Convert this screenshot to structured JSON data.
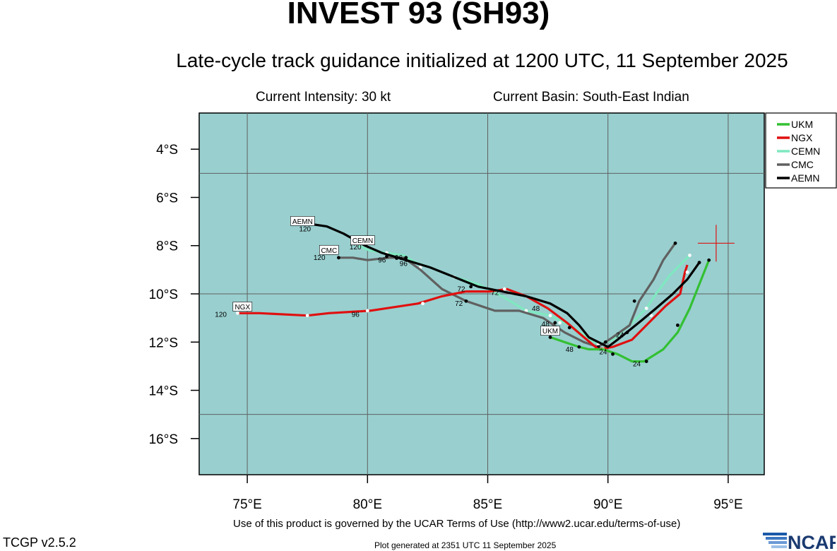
{
  "header": {
    "title": "INVEST 93 (SH93)",
    "subtitle": "Late-cycle track guidance initialized at 1200 UTC, 11 September 2025",
    "current_intensity": "Current Intensity: 30 kt",
    "current_basin": "Current Basin: South-East Indian"
  },
  "footer": {
    "terms": "Use of this product is governed by the UCAR Terms of Use (http://www2.ucar.edu/terms-of-use)",
    "version": "TCGP v2.5.2",
    "generated": "Plot generated at 2351 UTC   11 September 2025",
    "logo_text": "NCAR"
  },
  "colors": {
    "ocean": "#99CFCF",
    "UKM": "#33C033",
    "NGX": "#E01010",
    "CEMN": "#7FE8C0",
    "CMC": "#606060",
    "AEMN": "#000000",
    "current_position": "#E01010"
  },
  "map": {
    "lon_range": [
      73,
      96.5
    ],
    "lat_range": [
      -17.5,
      -2.5
    ],
    "x_ticks": [
      "75°E",
      "80°E",
      "85°E",
      "90°E",
      "95°E"
    ],
    "x_tick_values": [
      75,
      80,
      85,
      90,
      95
    ],
    "y_ticks": [
      "4°S",
      "6°S",
      "8°S",
      "10°S",
      "12°S",
      "14°S",
      "16°S"
    ],
    "y_tick_values": [
      -4,
      -6,
      -8,
      -10,
      -12,
      -14,
      -16
    ],
    "current_position": [
      94.5,
      -7.9
    ]
  },
  "legend": [
    "UKM",
    "NGX",
    "CEMN",
    "CMC",
    "AEMN"
  ],
  "tracks": [
    {
      "name": "CEMN",
      "points": [
        [
          93.4,
          -8.4
        ],
        [
          92.6,
          -9.2
        ],
        [
          92.0,
          -10.0
        ],
        [
          91.6,
          -10.6
        ],
        [
          91.0,
          -11.2
        ],
        [
          90.2,
          -11.9
        ],
        [
          89.6,
          -12.1
        ],
        [
          89.0,
          -11.7
        ],
        [
          88.4,
          -11.3
        ],
        [
          87.6,
          -10.9
        ],
        [
          86.6,
          -10.7
        ],
        [
          85.6,
          -10.1
        ],
        [
          84.6,
          -9.6
        ],
        [
          83.6,
          -9.3
        ],
        [
          82.6,
          -8.9
        ],
        [
          82.0,
          -8.7
        ],
        [
          81.5,
          -8.4
        ],
        [
          80.8,
          -8.3
        ],
        [
          80.1,
          -8.2
        ],
        [
          79.6,
          -8.0
        ]
      ],
      "dots": [
        [
          93.4,
          -8.4
        ],
        [
          91.6,
          -10.6
        ],
        [
          89.6,
          -12.1
        ],
        [
          87.6,
          -10.9
        ],
        [
          86.6,
          -10.7
        ],
        [
          83.6,
          -9.3
        ],
        [
          82.2,
          -8.9
        ],
        [
          80.8,
          -8.3
        ]
      ],
      "dot_color": "#ffffff",
      "hour_labels": [
        {
          "text": "48",
          "lon": 87.0,
          "lat": -10.7
        },
        {
          "text": "96",
          "lon": 81.3,
          "lat": -8.6
        },
        {
          "text": "120",
          "lon": 79.5,
          "lat": -8.15
        }
      ],
      "name_label": {
        "text": "CEMN",
        "lon": 79.8,
        "lat": -7.85
      }
    },
    {
      "name": "CMC",
      "points": [
        [
          92.8,
          -7.9
        ],
        [
          92.3,
          -8.6
        ],
        [
          91.9,
          -9.4
        ],
        [
          91.3,
          -10.3
        ],
        [
          90.9,
          -11.3
        ],
        [
          90.2,
          -11.8
        ],
        [
          89.6,
          -12.2
        ],
        [
          89.0,
          -12.0
        ],
        [
          88.2,
          -11.6
        ],
        [
          87.3,
          -11.0
        ],
        [
          86.3,
          -10.7
        ],
        [
          85.3,
          -10.7
        ],
        [
          84.1,
          -10.3
        ],
        [
          83.1,
          -9.8
        ],
        [
          82.2,
          -9.0
        ],
        [
          81.5,
          -8.5
        ],
        [
          80.9,
          -8.5
        ],
        [
          80.0,
          -8.6
        ],
        [
          79.4,
          -8.5
        ],
        [
          78.8,
          -8.5
        ]
      ],
      "dots": [
        [
          92.8,
          -7.9
        ],
        [
          91.1,
          -10.3
        ],
        [
          89.6,
          -12.2
        ],
        [
          87.8,
          -11.2
        ],
        [
          84.1,
          -10.3
        ],
        [
          81.6,
          -8.5
        ],
        [
          78.8,
          -8.5
        ]
      ],
      "dot_color": "#000000",
      "hour_labels": [
        {
          "text": "48",
          "lon": 87.4,
          "lat": -11.35
        },
        {
          "text": "72",
          "lon": 83.8,
          "lat": -10.5
        },
        {
          "text": "96",
          "lon": 81.5,
          "lat": -8.85
        },
        {
          "text": "120",
          "lon": 78.0,
          "lat": -8.6
        }
      ],
      "name_label": {
        "text": "CMC",
        "lon": 78.4,
        "lat": -8.25
      }
    },
    {
      "name": "NGX",
      "points": [
        [
          93.3,
          -8.8
        ],
        [
          93.2,
          -9.1
        ],
        [
          93.0,
          -10.0
        ],
        [
          92.4,
          -10.5
        ],
        [
          91.9,
          -11.0
        ],
        [
          91.0,
          -11.9
        ],
        [
          90.2,
          -12.2
        ],
        [
          89.6,
          -12.3
        ],
        [
          89.0,
          -11.8
        ],
        [
          88.3,
          -11.2
        ],
        [
          87.5,
          -10.6
        ],
        [
          86.6,
          -10.1
        ],
        [
          85.8,
          -9.8
        ],
        [
          85.1,
          -9.9
        ],
        [
          84.1,
          -9.9
        ],
        [
          83.1,
          -10.1
        ],
        [
          82.1,
          -10.4
        ],
        [
          80.1,
          -10.7
        ],
        [
          78.4,
          -10.8
        ],
        [
          77.5,
          -10.9
        ],
        [
          75.5,
          -10.8
        ],
        [
          74.6,
          -10.8
        ]
      ],
      "dots": [
        [
          93.3,
          -9.1
        ],
        [
          91.8,
          -10.9
        ],
        [
          89.8,
          -12.3
        ],
        [
          88.0,
          -11.2
        ],
        [
          85.7,
          -9.8
        ],
        [
          82.3,
          -10.4
        ],
        [
          80.0,
          -10.7
        ],
        [
          77.5,
          -10.9
        ],
        [
          74.6,
          -10.8
        ]
      ],
      "dot_color": "#ffffff",
      "hour_labels": [
        {
          "text": "24",
          "lon": 89.8,
          "lat": -12.5
        },
        {
          "text": "48",
          "lon": 87.8,
          "lat": -11.7
        },
        {
          "text": "72",
          "lon": 85.3,
          "lat": -10.05
        },
        {
          "text": "96",
          "lon": 79.5,
          "lat": -10.95
        },
        {
          "text": "120",
          "lon": 73.9,
          "lat": -10.95
        }
      ],
      "name_label": {
        "text": "NGX",
        "lon": 74.8,
        "lat": -10.6
      }
    },
    {
      "name": "UKM",
      "points": [
        [
          94.2,
          -8.6
        ],
        [
          93.8,
          -9.6
        ],
        [
          93.4,
          -10.6
        ],
        [
          92.9,
          -11.6
        ],
        [
          92.3,
          -12.3
        ],
        [
          91.5,
          -12.8
        ],
        [
          91.0,
          -12.8
        ],
        [
          90.4,
          -12.5
        ],
        [
          89.8,
          -12.3
        ],
        [
          89.2,
          -12.3
        ],
        [
          88.8,
          -12.2
        ],
        [
          88.2,
          -12.0
        ],
        [
          87.6,
          -11.8
        ]
      ],
      "dots": [
        [
          94.2,
          -8.6
        ],
        [
          92.9,
          -11.3
        ],
        [
          91.6,
          -12.8
        ],
        [
          90.2,
          -12.5
        ],
        [
          88.8,
          -12.2
        ],
        [
          87.6,
          -11.8
        ]
      ],
      "dot_color": "#000000",
      "hour_labels": [
        {
          "text": "24",
          "lon": 91.2,
          "lat": -13.0
        },
        {
          "text": "48",
          "lon": 88.4,
          "lat": -12.4
        }
      ],
      "name_label": {
        "text": "UKM",
        "lon": 87.6,
        "lat": -11.6
      }
    },
    {
      "name": "AEMN",
      "points": [
        [
          93.8,
          -8.7
        ],
        [
          93.3,
          -9.4
        ],
        [
          92.7,
          -10.0
        ],
        [
          92.0,
          -10.6
        ],
        [
          91.4,
          -11.1
        ],
        [
          90.9,
          -11.5
        ],
        [
          90.4,
          -11.9
        ],
        [
          90.0,
          -12.2
        ],
        [
          89.6,
          -12.0
        ],
        [
          89.2,
          -11.8
        ],
        [
          88.8,
          -11.3
        ],
        [
          88.3,
          -10.8
        ],
        [
          87.6,
          -10.4
        ],
        [
          86.6,
          -10.1
        ],
        [
          85.6,
          -9.9
        ],
        [
          84.6,
          -9.7
        ],
        [
          83.6,
          -9.3
        ],
        [
          82.6,
          -8.9
        ],
        [
          81.6,
          -8.6
        ],
        [
          80.6,
          -8.3
        ],
        [
          79.9,
          -8.0
        ],
        [
          79.0,
          -7.5
        ],
        [
          78.3,
          -7.2
        ],
        [
          77.6,
          -7.1
        ]
      ],
      "dots": [
        [
          93.8,
          -8.7
        ],
        [
          90.8,
          -11.6
        ],
        [
          89.9,
          -12.0
        ],
        [
          88.4,
          -11.4
        ],
        [
          84.3,
          -9.7
        ],
        [
          81.6,
          -8.5
        ],
        [
          81.2,
          -8.5
        ],
        [
          80.8,
          -8.45
        ]
      ],
      "dot_color": "#000000",
      "hour_labels": [
        {
          "text": "24",
          "lon": 90.5,
          "lat": -11.8
        },
        {
          "text": "72",
          "lon": 83.9,
          "lat": -9.9
        },
        {
          "text": "96",
          "lon": 80.6,
          "lat": -8.7
        },
        {
          "text": "120",
          "lon": 77.4,
          "lat": -7.4
        }
      ],
      "name_label": {
        "text": "AEMN",
        "lon": 77.3,
        "lat": -7.05
      }
    }
  ]
}
